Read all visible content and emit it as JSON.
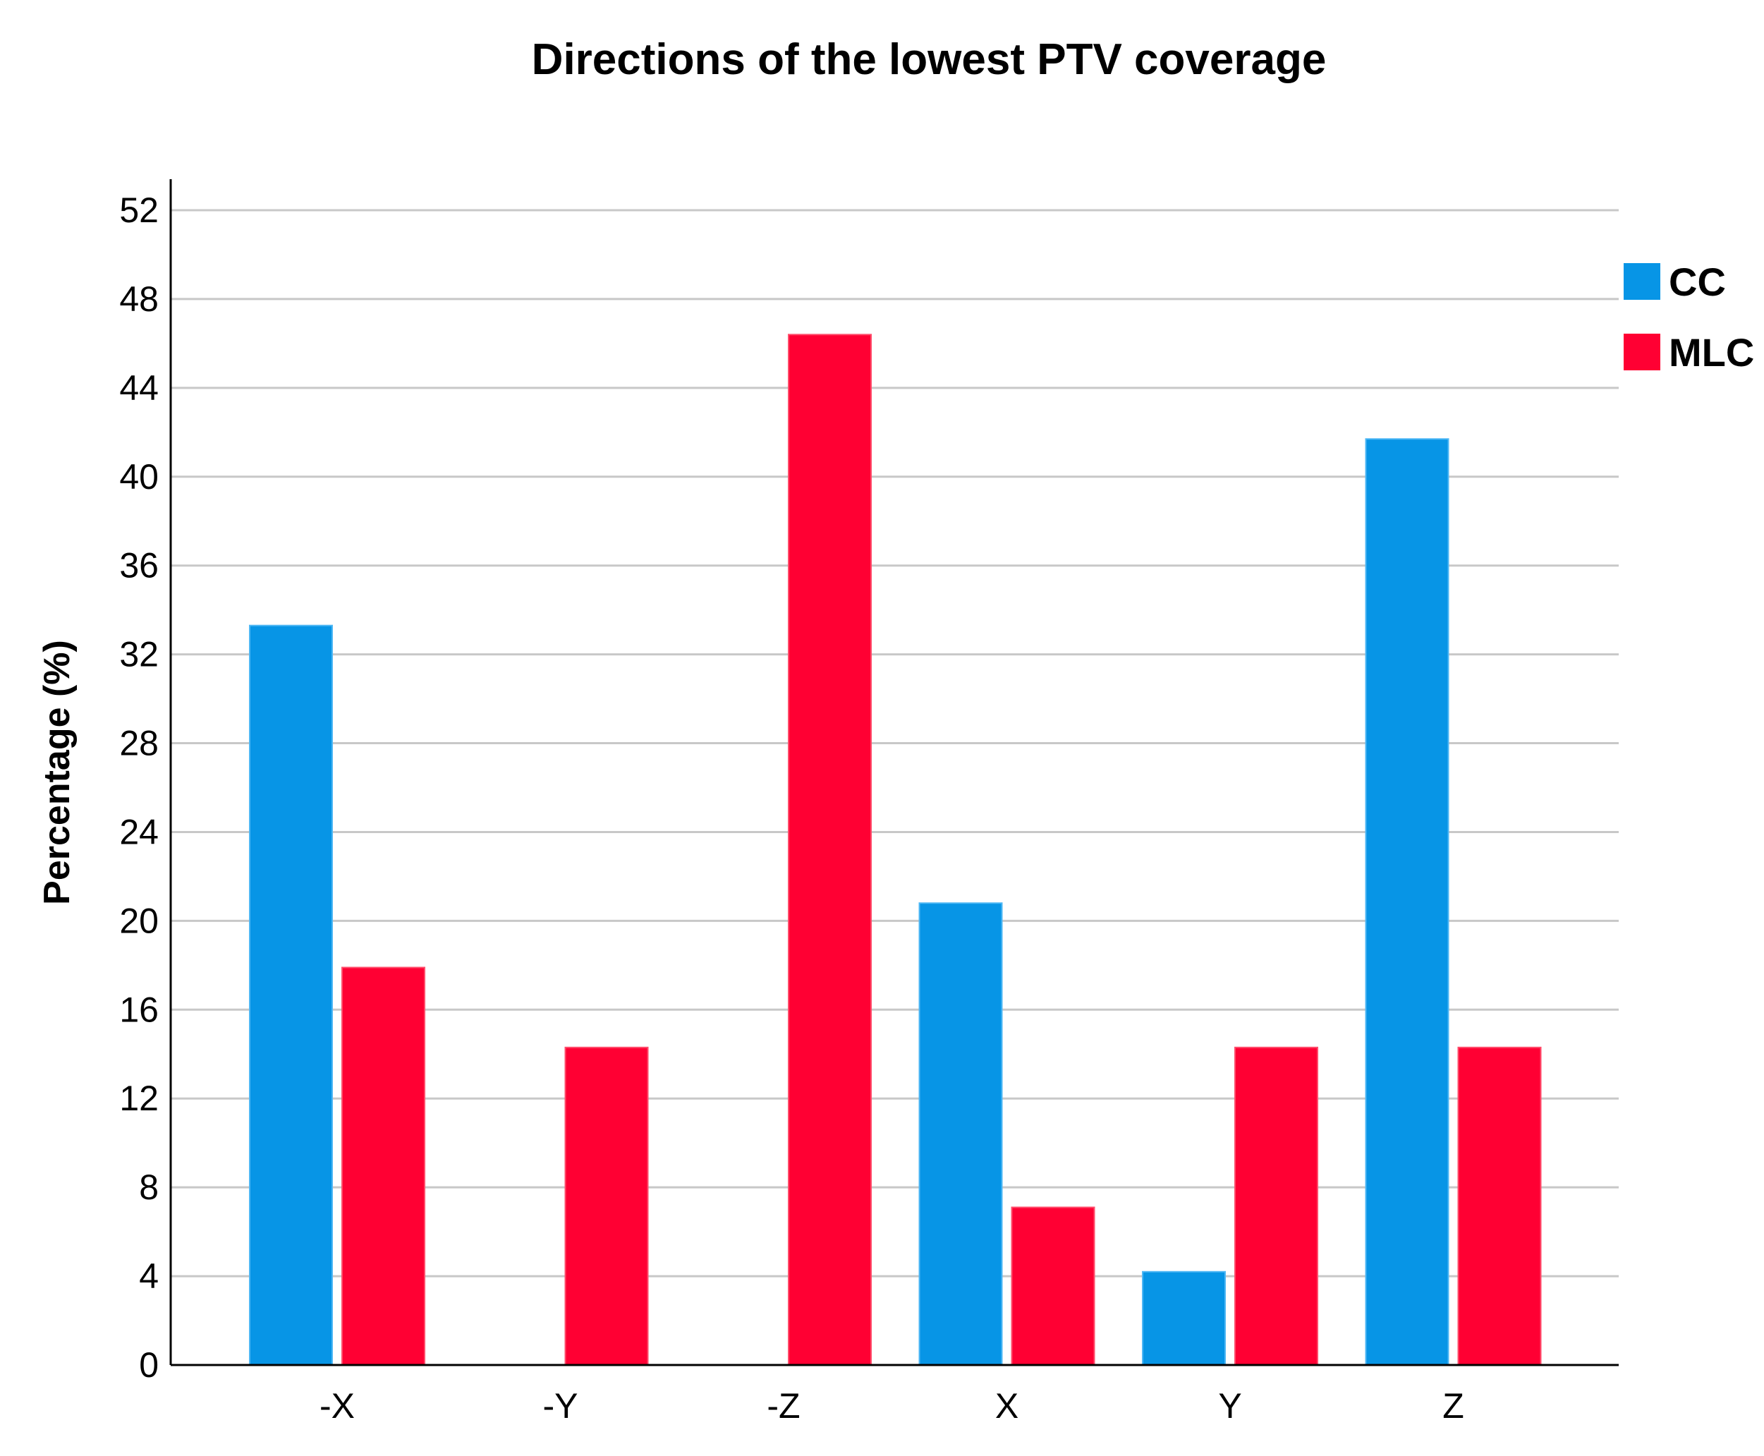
{
  "chart_data": {
    "type": "bar",
    "title": "Directions of the lowest PTV coverage",
    "xlabel": "",
    "ylabel": "Percentage (%)",
    "categories": [
      "-X",
      "-Y",
      "-Z",
      "X",
      "Y",
      "Z"
    ],
    "ylim": [
      0,
      52
    ],
    "yticks": [
      0,
      4,
      8,
      12,
      16,
      20,
      24,
      28,
      32,
      36,
      40,
      44,
      48,
      52
    ],
    "grid": true,
    "legend_position": "right",
    "series": [
      {
        "name": "CC",
        "color": "#0795e6",
        "values": [
          33.3,
          0,
          0,
          20.8,
          4.2,
          41.7
        ]
      },
      {
        "name": "MLC",
        "color": "#ff0033",
        "values": [
          17.9,
          14.3,
          46.4,
          7.1,
          14.3,
          14.3
        ]
      }
    ]
  }
}
